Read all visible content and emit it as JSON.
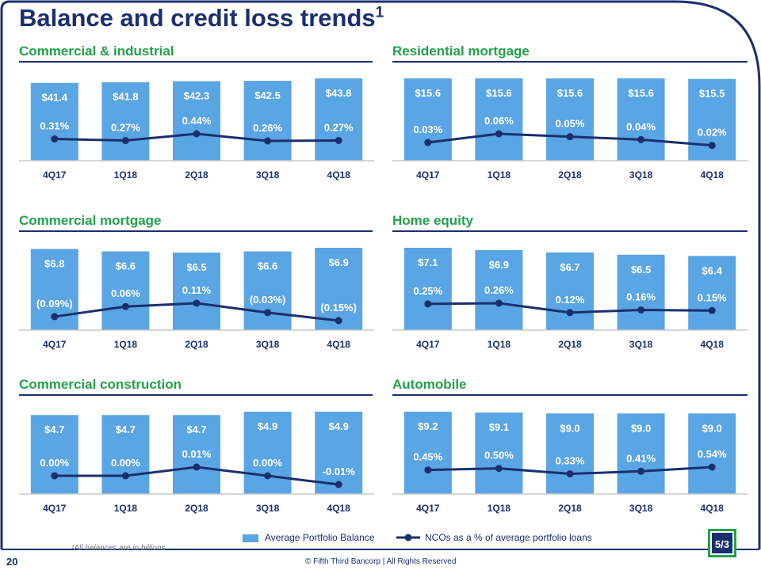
{
  "slide": {
    "title": "Balance and credit loss trends",
    "title_superscript": "1",
    "page_number": "20",
    "footnote": "¹All balances are in billions",
    "copyright": "© Fifth Third Bancorp | All Rights Reserved"
  },
  "legend": {
    "bar_label": "Average Portfolio Balance",
    "line_label": "NCOs as a % of average portfolio loans"
  },
  "colors": {
    "bar": "#5aa5e3",
    "line": "#1b2f6e",
    "title": "#1b2f6e",
    "panel_title": "#23a04b"
  },
  "chart_data": [
    {
      "type": "bar",
      "title": "Commercial & industrial",
      "categories": [
        "4Q17",
        "1Q18",
        "2Q18",
        "3Q18",
        "4Q18"
      ],
      "series": [
        {
          "name": "Average Portfolio Balance",
          "values": [
            41.4,
            41.8,
            42.3,
            42.5,
            43.8
          ],
          "labels": [
            "$41.4",
            "$41.8",
            "$42.3",
            "$42.5",
            "$43.8"
          ]
        },
        {
          "name": "NCOs as a % of average portfolio loans",
          "values": [
            0.31,
            0.27,
            0.44,
            0.26,
            0.27
          ],
          "labels": [
            "0.31%",
            "0.27%",
            "0.44%",
            "0.26%",
            "0.27%"
          ]
        }
      ]
    },
    {
      "type": "bar",
      "title": "Residential mortgage",
      "categories": [
        "4Q17",
        "1Q18",
        "2Q18",
        "3Q18",
        "4Q18"
      ],
      "series": [
        {
          "name": "Average Portfolio Balance",
          "values": [
            15.6,
            15.6,
            15.6,
            15.6,
            15.5
          ],
          "labels": [
            "$15.6",
            "$15.6",
            "$15.6",
            "$15.6",
            "$15.5"
          ]
        },
        {
          "name": "NCOs as a % of average portfolio loans",
          "values": [
            0.03,
            0.06,
            0.05,
            0.04,
            0.02
          ],
          "labels": [
            "0.03%",
            "0.06%",
            "0.05%",
            "0.04%",
            "0.02%"
          ]
        }
      ]
    },
    {
      "type": "bar",
      "title": "Commercial mortgage",
      "categories": [
        "4Q17",
        "1Q18",
        "2Q18",
        "3Q18",
        "4Q18"
      ],
      "series": [
        {
          "name": "Average Portfolio Balance",
          "values": [
            6.8,
            6.6,
            6.5,
            6.6,
            6.9
          ],
          "labels": [
            "$6.8",
            "$6.6",
            "$6.5",
            "$6.6",
            "$6.9"
          ]
        },
        {
          "name": "NCOs as a % of average portfolio loans",
          "values": [
            -0.09,
            0.06,
            0.11,
            -0.03,
            -0.15
          ],
          "labels": [
            "(0.09%)",
            "0.06%",
            "0.11%",
            "(0.03%)",
            "(0.15%)"
          ]
        }
      ]
    },
    {
      "type": "bar",
      "title": "Home equity",
      "categories": [
        "4Q17",
        "1Q18",
        "2Q18",
        "3Q18",
        "4Q18"
      ],
      "series": [
        {
          "name": "Average Portfolio Balance",
          "values": [
            7.1,
            6.9,
            6.7,
            6.5,
            6.4
          ],
          "labels": [
            "$7.1",
            "$6.9",
            "$6.7",
            "$6.5",
            "$6.4"
          ]
        },
        {
          "name": "NCOs as a % of average portfolio loans",
          "values": [
            0.25,
            0.26,
            0.12,
            0.16,
            0.15
          ],
          "labels": [
            "0.25%",
            "0.26%",
            "0.12%",
            "0.16%",
            "0.15%"
          ]
        }
      ]
    },
    {
      "type": "bar",
      "title": "Commercial construction",
      "categories": [
        "4Q17",
        "1Q18",
        "2Q18",
        "3Q18",
        "4Q18"
      ],
      "series": [
        {
          "name": "Average Portfolio Balance",
          "values": [
            4.7,
            4.7,
            4.7,
            4.9,
            4.9
          ],
          "labels": [
            "$4.7",
            "$4.7",
            "$4.7",
            "$4.9",
            "$4.9"
          ]
        },
        {
          "name": "NCOs as a % of average portfolio loans",
          "values": [
            0.0,
            0.0,
            0.01,
            0.0,
            -0.01
          ],
          "labels": [
            "0.00%",
            "0.00%",
            "0.01%",
            "0.00%",
            "-0.01%"
          ]
        }
      ]
    },
    {
      "type": "bar",
      "title": "Automobile",
      "categories": [
        "4Q17",
        "1Q18",
        "2Q18",
        "3Q18",
        "4Q18"
      ],
      "series": [
        {
          "name": "Average Portfolio Balance",
          "values": [
            9.2,
            9.1,
            9.0,
            9.0,
            9.0
          ],
          "labels": [
            "$9.2",
            "$9.1",
            "$9.0",
            "$9.0",
            "$9.0"
          ]
        },
        {
          "name": "NCOs as a % of average portfolio loans",
          "values": [
            0.45,
            0.5,
            0.33,
            0.41,
            0.54
          ],
          "labels": [
            "0.45%",
            "0.50%",
            "0.33%",
            "0.41%",
            "0.54%"
          ]
        }
      ]
    }
  ]
}
